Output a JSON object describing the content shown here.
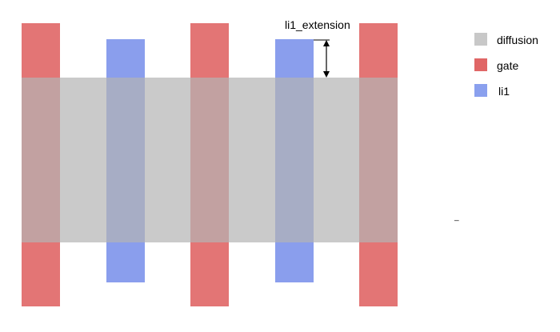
{
  "diagram": {
    "annotation": {
      "label": "li1_extension"
    },
    "legend": [
      {
        "label": "diffusion",
        "color": "#c8c8c8"
      },
      {
        "label": "gate",
        "color": "#e06666"
      },
      {
        "label": "li1",
        "color": "#6d86e8"
      }
    ],
    "stray_mark": "_"
  }
}
